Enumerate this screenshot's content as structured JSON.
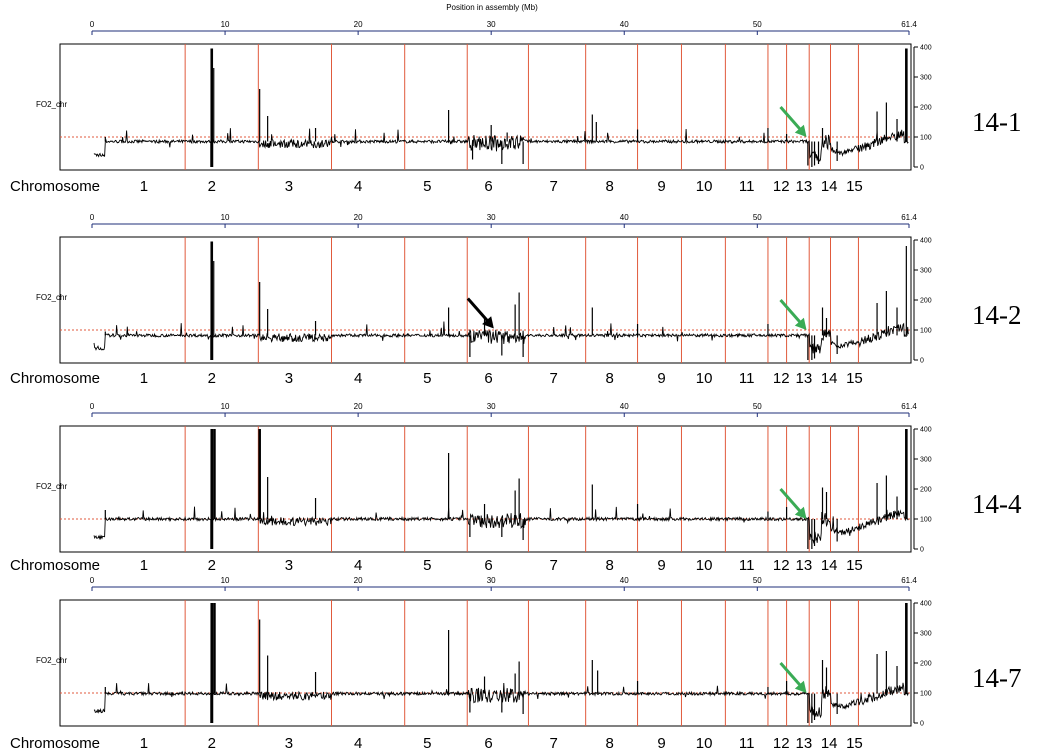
{
  "chart_data": {
    "type": "line",
    "x_axis_title": "Position in assembly (Mb)",
    "x_range": [
      0,
      61.4
    ],
    "x_ticks": [
      0,
      10,
      20,
      30,
      40,
      50
    ],
    "x_end_label": "61.4",
    "y_range": [
      0,
      400
    ],
    "y_ticks": [
      0,
      100,
      200,
      300,
      400
    ],
    "reference_value": 100,
    "track_name": "FO2_chr",
    "chromosome_word": "Chromosome",
    "chromosome_labels": [
      "1",
      "2",
      "3",
      "4",
      "5",
      "6",
      "7",
      "8",
      "9",
      "10",
      "11",
      "12",
      "13",
      "14",
      "15"
    ],
    "chromosome_label_centers": [
      3.9,
      9.0,
      14.8,
      20.0,
      25.2,
      29.8,
      34.7,
      38.9,
      42.8,
      46.0,
      49.2,
      51.8,
      53.5,
      55.4,
      57.3
    ],
    "chromosome_boundaries": [
      0,
      7.0,
      12.5,
      18.0,
      23.5,
      28.2,
      32.8,
      37.1,
      41.0,
      44.3,
      47.6,
      50.8,
      52.2,
      53.9,
      55.5,
      57.6,
      61.4
    ],
    "colors": {
      "boundary": "#e05a3c",
      "reference": "#e05a3c",
      "axis": "#1f2f7a",
      "coverage": "#000000",
      "arrow_green": "#3aab55",
      "arrow_black": "#000000"
    },
    "panels": [
      {
        "sample": "14-1",
        "baseline": 85,
        "spikes": [
          [
            1.0,
            100
          ],
          [
            9.0,
            395
          ],
          [
            9.15,
            330
          ],
          [
            12.6,
            260
          ],
          [
            13.2,
            170
          ],
          [
            16.8,
            130
          ],
          [
            26.8,
            190
          ],
          [
            30.0,
            140
          ],
          [
            31.2,
            115
          ],
          [
            37.6,
            175
          ],
          [
            37.9,
            150
          ],
          [
            41.0,
            125
          ],
          [
            50.8,
            130
          ],
          [
            52.2,
            110
          ],
          [
            54.9,
            130
          ],
          [
            59.0,
            185
          ],
          [
            59.7,
            215
          ],
          [
            60.5,
            160
          ],
          [
            61.2,
            395
          ]
        ],
        "dips": [
          [
            9.0,
            0
          ],
          [
            28.6,
            25
          ],
          [
            30.8,
            10
          ],
          [
            32.4,
            10
          ],
          [
            53.8,
            5
          ],
          [
            54.1,
            0
          ],
          [
            54.3,
            5
          ],
          [
            54.6,
            10
          ],
          [
            56.0,
            20
          ]
        ],
        "arrows": [
          {
            "color": "green",
            "x": 53.7,
            "value": 100
          }
        ]
      },
      {
        "sample": "14-2",
        "baseline": 82,
        "spikes": [
          [
            1.0,
            95
          ],
          [
            9.0,
            395
          ],
          [
            9.15,
            330
          ],
          [
            12.6,
            260
          ],
          [
            13.2,
            170
          ],
          [
            16.8,
            130
          ],
          [
            26.8,
            175
          ],
          [
            29.5,
            140
          ],
          [
            31.8,
            185
          ],
          [
            32.1,
            225
          ],
          [
            37.6,
            175
          ],
          [
            41.0,
            120
          ],
          [
            50.8,
            120
          ],
          [
            54.9,
            175
          ],
          [
            55.2,
            140
          ],
          [
            59.0,
            190
          ],
          [
            59.7,
            230
          ],
          [
            60.5,
            175
          ],
          [
            61.2,
            380
          ]
        ],
        "dips": [
          [
            9.0,
            0
          ],
          [
            28.4,
            10
          ],
          [
            30.8,
            15
          ],
          [
            32.4,
            10
          ],
          [
            53.8,
            0
          ],
          [
            54.1,
            0
          ],
          [
            54.3,
            5
          ],
          [
            56.0,
            20
          ]
        ],
        "arrows": [
          {
            "color": "green",
            "x": 53.7,
            "value": 100
          },
          {
            "color": "black",
            "x": 30.2,
            "value": 105
          }
        ]
      },
      {
        "sample": "14-4",
        "baseline": 100,
        "spikes": [
          [
            1.0,
            130
          ],
          [
            9.0,
            400
          ],
          [
            9.2,
            400
          ],
          [
            12.6,
            400
          ],
          [
            13.2,
            240
          ],
          [
            16.8,
            170
          ],
          [
            26.8,
            320
          ],
          [
            29.5,
            150
          ],
          [
            31.8,
            195
          ],
          [
            32.1,
            235
          ],
          [
            37.6,
            215
          ],
          [
            41.0,
            150
          ],
          [
            50.8,
            125
          ],
          [
            52.2,
            140
          ],
          [
            54.9,
            205
          ],
          [
            55.2,
            190
          ],
          [
            59.0,
            220
          ],
          [
            59.7,
            245
          ],
          [
            60.5,
            175
          ],
          [
            61.2,
            400
          ]
        ],
        "dips": [
          [
            9.0,
            0
          ],
          [
            28.4,
            40
          ],
          [
            30.8,
            40
          ],
          [
            32.4,
            30
          ],
          [
            53.8,
            0
          ],
          [
            54.1,
            0
          ],
          [
            54.3,
            10
          ],
          [
            56.0,
            25
          ]
        ],
        "arrows": [
          {
            "color": "green",
            "x": 53.7,
            "value": 100
          }
        ]
      },
      {
        "sample": "14-7",
        "baseline": 98,
        "spikes": [
          [
            1.0,
            120
          ],
          [
            9.0,
            400
          ],
          [
            9.2,
            400
          ],
          [
            12.6,
            345
          ],
          [
            13.2,
            225
          ],
          [
            16.8,
            170
          ],
          [
            26.8,
            310
          ],
          [
            29.5,
            155
          ],
          [
            31.8,
            165
          ],
          [
            32.1,
            205
          ],
          [
            37.6,
            210
          ],
          [
            38.0,
            175
          ],
          [
            41.0,
            140
          ],
          [
            50.8,
            120
          ],
          [
            52.2,
            140
          ],
          [
            54.9,
            210
          ],
          [
            55.2,
            185
          ],
          [
            59.0,
            230
          ],
          [
            59.7,
            240
          ],
          [
            60.5,
            190
          ],
          [
            61.2,
            400
          ]
        ],
        "dips": [
          [
            9.0,
            0
          ],
          [
            28.4,
            35
          ],
          [
            30.8,
            35
          ],
          [
            32.4,
            30
          ],
          [
            53.8,
            0
          ],
          [
            54.1,
            0
          ],
          [
            54.3,
            10
          ],
          [
            56.0,
            30
          ]
        ],
        "arrows": [
          {
            "color": "green",
            "x": 53.7,
            "value": 100
          }
        ]
      }
    ]
  }
}
